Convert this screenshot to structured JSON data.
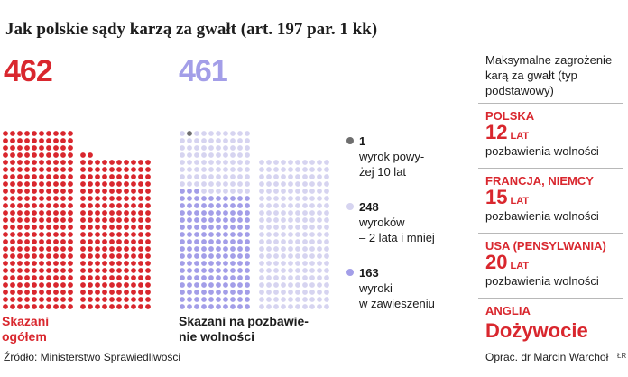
{
  "title": "Jak polskie sądy karzą za gwałt (art. 197 par. 1 kk)",
  "colors": {
    "red": "#d9272e",
    "lavender_light": "#d6d4f0",
    "lavender": "#a39ee8",
    "dark_dot": "#6e6e6e"
  },
  "chart_data": {
    "type": "waffle",
    "groups": [
      {
        "label": "Skazani ogółem",
        "total_label": "462",
        "total": 462,
        "color": "#d9272e"
      },
      {
        "label": "Skazani na pozbawienie wolności",
        "total_label": "461",
        "total": 461,
        "breakdown": [
          {
            "count_label": "1",
            "count": 1,
            "label": "wyrok powyżej 10 lat",
            "color": "#6e6e6e"
          },
          {
            "count_label": "248",
            "count": 248,
            "label": "wyroków – 2 lata i mniej",
            "color": "#d6d4f0"
          },
          {
            "count_label": "163",
            "count": 163,
            "label": "wyroki w zawieszeniu",
            "color": "#a39ee8"
          }
        ]
      }
    ]
  },
  "captions": {
    "total": [
      "Skazani",
      "ogółem"
    ],
    "prison": [
      "Skazani na pozbawie-",
      "nie wolności"
    ]
  },
  "legend": [
    {
      "num": "1",
      "lines": [
        "wyrok powy-",
        "żej 10 lat"
      ]
    },
    {
      "num": "248",
      "lines": [
        "wyroków",
        "– 2 lata i mniej"
      ]
    },
    {
      "num": "163",
      "lines": [
        "wyroki",
        "w zawieszeniu"
      ]
    }
  ],
  "sidebar": {
    "intro": [
      "Maksymalne zagrożenie",
      "karą za gwałt (typ",
      "podstawowy)"
    ],
    "countries": [
      {
        "name": "POLSKA",
        "years": "12",
        "unit": "LAT",
        "desc": "pozbawienia wolności"
      },
      {
        "name": "FRANCJA, NIEMCY",
        "years": "15",
        "unit": "LAT",
        "desc": "pozbawienia wolności"
      },
      {
        "name": "USA (PENSYLWANIA)",
        "years": "20",
        "unit": "LAT",
        "desc": "pozbawienia wolności"
      }
    ],
    "england": {
      "name": "ANGLIA",
      "penalty": "Dożywocie"
    }
  },
  "source": "Źródło: Ministerstwo Sprawiedliwości",
  "author": "Oprac. dr Marcin Warchoł",
  "mark": "ŁR"
}
